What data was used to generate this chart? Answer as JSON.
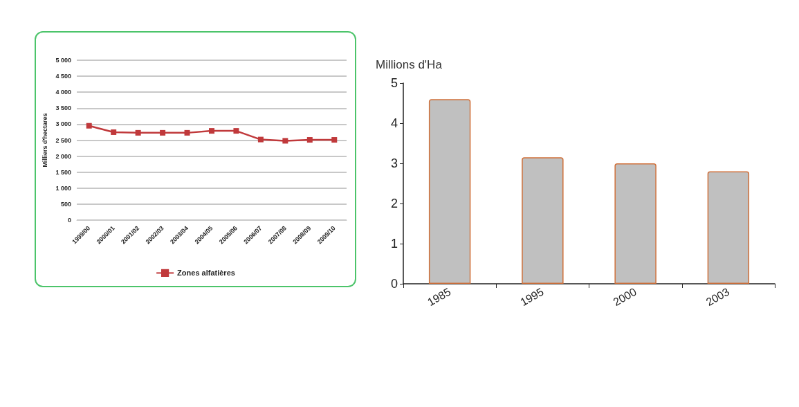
{
  "chart_data": [
    {
      "type": "line",
      "ylabel": "Milliers d'hectares",
      "categories": [
        "1999/00",
        "2000/01",
        "2001/02",
        "2002/03",
        "2003/04",
        "2004/05",
        "2005/06",
        "2006/07",
        "2007/08",
        "2008/09",
        "2009/10"
      ],
      "series": [
        {
          "name": "Zones alfatières",
          "color": "#c0393b",
          "values": [
            2950,
            2750,
            2730,
            2730,
            2730,
            2790,
            2790,
            2520,
            2480,
            2510,
            2510
          ]
        }
      ],
      "ylim": [
        0,
        5000
      ],
      "yticks": [
        0,
        500,
        {
          "value": 1000,
          "label": "1 000"
        },
        {
          "value": 1500,
          "label": "1 500"
        },
        {
          "value": 2000,
          "label": "2 000"
        },
        {
          "value": 2500,
          "label": "2 500"
        },
        {
          "value": 3000,
          "label": "3 000"
        },
        {
          "value": 3500,
          "label": "3 500"
        },
        {
          "value": 4000,
          "label": "4 000"
        },
        {
          "value": 4500,
          "label": "4 500"
        },
        {
          "value": 5000,
          "label": "5 000"
        }
      ],
      "grid": "y",
      "legend": "bottom",
      "marker": "square"
    },
    {
      "type": "bar",
      "ylabel": "Millions d'Ha",
      "categories": [
        "1985",
        "1995",
        "2000",
        "2003"
      ],
      "values": [
        4.6,
        3.15,
        3.0,
        2.8
      ],
      "color": "#c0c0c0",
      "ylim": [
        0,
        5
      ],
      "yticks": [
        0,
        1,
        2,
        3,
        4,
        5
      ],
      "grid": false
    }
  ]
}
